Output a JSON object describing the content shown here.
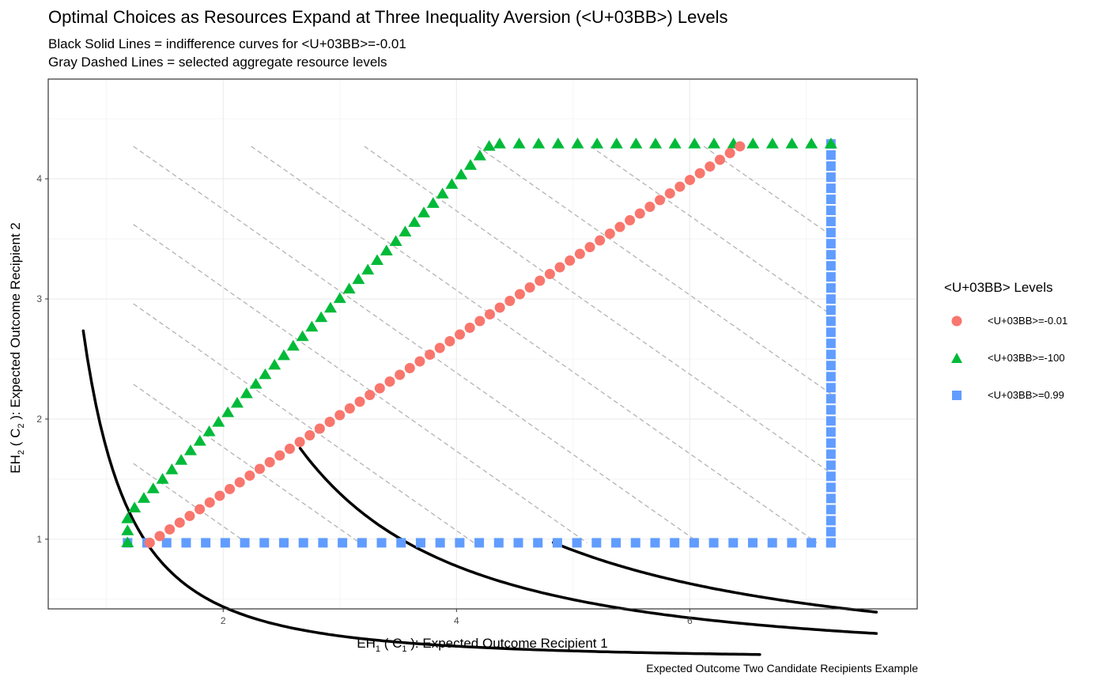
{
  "chart_data": {
    "type": "scatter",
    "title": "Optimal Choices as Resources Expand at Three Inequality Aversion (<U+03BB>) Levels",
    "subtitle": [
      "Black Solid Lines = indifference curves for <U+03BB>=-0.01",
      "Gray Dashed Lines = selected aggregate resource levels"
    ],
    "caption": "Expected Outcome Two Candidate Recipients Example",
    "xlabel": {
      "prefix": "EH",
      "prefix_sub": "1",
      "mid": " ( C",
      "mid_sub": "1",
      "suffix": " ):  Expected Outcome Recipient 1"
    },
    "ylabel": {
      "prefix": "EH",
      "prefix_sub": "2",
      "mid": " ( C",
      "mid_sub": "2",
      "suffix": " ):  Expected Outcome Recipient 2"
    },
    "xlim": [
      0.5,
      7.95
    ],
    "ylim": [
      0.42,
      4.83
    ],
    "xticks": [
      2,
      4,
      6
    ],
    "yticks": [
      1,
      2,
      3,
      4
    ],
    "grid": true,
    "legend": {
      "title": "<U+03BB> Levels",
      "position": "right"
    },
    "series": [
      {
        "name": "<U+03BB>=-0.01",
        "marker": "circle",
        "color": "#F8766D",
        "x_start": 1.37,
        "x_end": 6.43,
        "y_start": 0.97,
        "y_end": 4.27,
        "n": 60
      },
      {
        "name": "<U+03BB>=-100",
        "marker": "triangle",
        "color": "#00BA38",
        "points": [
          [
            1.18,
            0.97
          ],
          [
            1.18,
            1.07
          ],
          [
            1.18,
            1.17
          ],
          [
            1.24,
            1.26
          ]
        ],
        "diag": {
          "x_start": 1.32,
          "x_end": 4.28,
          "y_start": 1.34,
          "y_end": 4.27,
          "n": 38
        },
        "flat": {
          "x_start": 4.37,
          "x_end": 7.21,
          "y": 4.29,
          "n": 18
        }
      },
      {
        "name": "<U+03BB>=0.99",
        "marker": "square",
        "color": "#619CFF",
        "bottom": {
          "x_start": 1.18,
          "x_end": 7.21,
          "y": 0.97,
          "n": 37
        },
        "right": {
          "x": 7.21,
          "y_start": 0.97,
          "y_end": 4.29,
          "n": 37
        }
      }
    ],
    "indifference_curves": [
      {
        "color": "#000000",
        "k": 1.75,
        "x_from": 0.8,
        "x_to": 6.6
      },
      {
        "color": "#000000",
        "k": 12.43,
        "x_from": 2.66,
        "x_to": 7.6
      },
      {
        "color": "#000000",
        "k": 22.69,
        "x_from": 4.83,
        "x_to": 7.6
      }
    ],
    "budget_lines": [
      {
        "color": "#b3b3b3",
        "x_from": 1.23,
        "y_from": 1.63,
        "x_to": 2.2,
        "y_to": 0.97
      },
      {
        "color": "#b3b3b3",
        "x_from": 1.23,
        "y_from": 2.29,
        "x_to": 3.17,
        "y_to": 0.97
      },
      {
        "color": "#b3b3b3",
        "x_from": 1.23,
        "y_from": 2.96,
        "x_to": 4.15,
        "y_to": 0.97
      },
      {
        "color": "#b3b3b3",
        "x_from": 1.23,
        "y_from": 3.62,
        "x_to": 5.12,
        "y_to": 0.97
      },
      {
        "color": "#b3b3b3",
        "x_from": 1.23,
        "y_from": 4.27,
        "x_to": 6.08,
        "y_to": 0.97
      },
      {
        "color": "#b3b3b3",
        "x_from": 2.24,
        "y_from": 4.27,
        "x_to": 7.09,
        "y_to": 0.97
      },
      {
        "color": "#b3b3b3",
        "x_from": 3.21,
        "y_from": 4.27,
        "x_to": 7.21,
        "y_to": 1.55
      },
      {
        "color": "#b3b3b3",
        "x_from": 4.18,
        "y_from": 4.27,
        "x_to": 7.21,
        "y_to": 2.21
      },
      {
        "color": "#b3b3b3",
        "x_from": 5.15,
        "y_from": 4.27,
        "x_to": 7.21,
        "y_to": 2.87
      },
      {
        "color": "#b3b3b3",
        "x_from": 6.12,
        "y_from": 4.27,
        "x_to": 7.21,
        "y_to": 3.53
      }
    ]
  }
}
